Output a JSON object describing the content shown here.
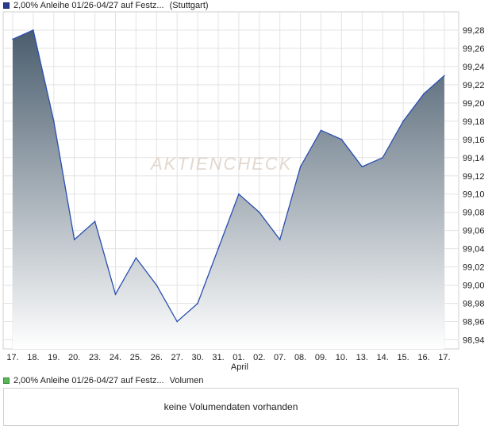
{
  "legend_price": {
    "name": "2,00% Anleihe 01/26-04/27 auf Festz...",
    "exchange": "(Stuttgart)",
    "color": "#2a3b8f"
  },
  "legend_volume": {
    "name": "2,00% Anleihe 01/26-04/27 auf Festz...",
    "label": "Volumen",
    "color": "#58b858"
  },
  "volume_message": "keine Volumendaten vorhanden",
  "watermark": "AKTIENCHECK",
  "chart_data": {
    "type": "area",
    "categories": [
      "17.",
      "18.",
      "19.",
      "20.",
      "23.",
      "24.",
      "25.",
      "26.",
      "27.",
      "30.",
      "31.",
      "01.",
      "02.",
      "07.",
      "08.",
      "09.",
      "10.",
      "13.",
      "14.",
      "15.",
      "16.",
      "17."
    ],
    "month_label": {
      "text": "April",
      "category": "01."
    },
    "values": [
      99.27,
      99.28,
      99.18,
      99.05,
      99.07,
      98.99,
      99.03,
      99.0,
      98.96,
      98.98,
      99.04,
      99.1,
      99.08,
      99.05,
      99.13,
      99.17,
      99.16,
      99.13,
      99.14,
      99.18,
      99.21,
      99.23
    ],
    "y_ticks": [
      "98,94",
      "98,96",
      "98,98",
      "99,00",
      "99,02",
      "99,04",
      "99,06",
      "99,08",
      "99,10",
      "99,12",
      "99,14",
      "99,16",
      "99,18",
      "99,20",
      "99,22",
      "99,24",
      "99,26",
      "99,28"
    ],
    "ylim": [
      98.93,
      99.3
    ],
    "grid": true,
    "line_color": "#2a4fb0",
    "fill_top_color": "#4a5d6e",
    "fill_bottom_color": "#ffffff"
  }
}
